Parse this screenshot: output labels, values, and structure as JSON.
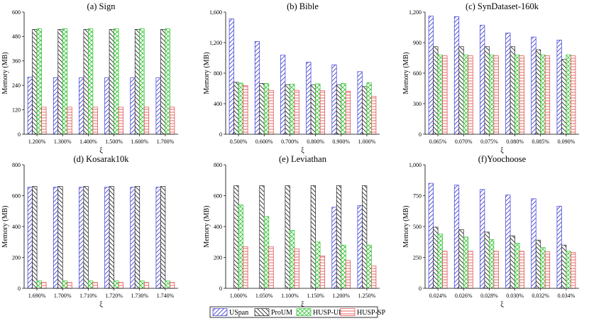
{
  "colors": {
    "USpan": "#3b3bd6",
    "ProUM": "#222222",
    "HUSP-ULL": "#2ec42e",
    "HUSP-SP": "#e04040"
  },
  "legend": [
    "USpan",
    "ProUM",
    "HUSP-ULL",
    "HUSP-SP"
  ],
  "chart_data": [
    {
      "type": "bar",
      "title": "(a) Sign",
      "xlabel": "ξ",
      "ylabel": "Memory (MB)",
      "ylim": [
        0,
        600
      ],
      "yticks": [
        "0",
        "120",
        "240",
        "360",
        "480",
        "600"
      ],
      "grid": false,
      "categories": [
        "1.200%",
        "1.300%",
        "1.400%",
        "1.500%",
        "1.600%",
        "1.700%"
      ],
      "series": [
        {
          "name": "USpan",
          "values": [
            280,
            277,
            277,
            277,
            277,
            277
          ]
        },
        {
          "name": "ProUM",
          "values": [
            515,
            515,
            515,
            515,
            515,
            515
          ]
        },
        {
          "name": "HUSP-ULL",
          "values": [
            518,
            518,
            518,
            518,
            518,
            518
          ]
        },
        {
          "name": "HUSP-SP",
          "values": [
            133,
            133,
            133,
            133,
            133,
            133
          ]
        }
      ]
    },
    {
      "type": "bar",
      "title": "(b) Bible",
      "xlabel": "ξ",
      "ylabel": "Memory (MB)",
      "ylim": [
        0,
        1600
      ],
      "yticks": [
        "0",
        "400",
        "800",
        "1,200",
        "1,600"
      ],
      "grid": false,
      "categories": [
        "0.500%",
        "0.600%",
        "0.700%",
        "0.800%",
        "0.900%",
        "1.000%"
      ],
      "series": [
        {
          "name": "USpan",
          "values": [
            1510,
            1215,
            1035,
            945,
            910,
            820
          ]
        },
        {
          "name": "ProUM",
          "values": [
            680,
            665,
            650,
            645,
            645,
            625
          ]
        },
        {
          "name": "HUSP-ULL",
          "values": [
            670,
            665,
            655,
            660,
            665,
            675
          ]
        },
        {
          "name": "HUSP-SP",
          "values": [
            635,
            575,
            575,
            570,
            565,
            495
          ]
        }
      ]
    },
    {
      "type": "bar",
      "title": "(c) SynDataset-160k",
      "xlabel": "ξ",
      "ylabel": "Memory (MB)",
      "ylim": [
        0,
        1200
      ],
      "yticks": [
        "0",
        "300",
        "600",
        "900",
        "1,200"
      ],
      "grid": false,
      "categories": [
        "0.065%",
        "0.070%",
        "0.075%",
        "0.080%",
        "0.085%",
        "0.090%"
      ],
      "series": [
        {
          "name": "USpan",
          "values": [
            1160,
            1155,
            1070,
            995,
            955,
            925
          ]
        },
        {
          "name": "ProUM",
          "values": [
            860,
            860,
            860,
            860,
            830,
            735
          ]
        },
        {
          "name": "HUSP-ULL",
          "values": [
            780,
            780,
            780,
            780,
            780,
            780
          ]
        },
        {
          "name": "HUSP-SP",
          "values": [
            770,
            770,
            770,
            770,
            770,
            770
          ]
        }
      ]
    },
    {
      "type": "bar",
      "title": "(d) Kosarak10k",
      "xlabel": "ξ",
      "ylabel": "Memory (MB)",
      "ylim": [
        0,
        800
      ],
      "yticks": [
        "0",
        "200",
        "400",
        "600",
        "800"
      ],
      "grid": false,
      "categories": [
        "1.690%",
        "1.700%",
        "1.710%",
        "1.720%",
        "1.730%",
        "1.740%"
      ],
      "series": [
        {
          "name": "USpan",
          "values": [
            655,
            655,
            655,
            655,
            655,
            655
          ]
        },
        {
          "name": "ProUM",
          "values": [
            660,
            660,
            660,
            660,
            660,
            660
          ]
        },
        {
          "name": "HUSP-ULL",
          "values": [
            48,
            48,
            48,
            48,
            48,
            48
          ]
        },
        {
          "name": "HUSP-SP",
          "values": [
            38,
            38,
            38,
            38,
            38,
            38
          ]
        }
      ]
    },
    {
      "type": "bar",
      "title": "(e) Leviathan",
      "xlabel": "ξ",
      "ylabel": "Memory (MB)",
      "ylim": [
        0,
        800
      ],
      "yticks": [
        "0",
        "200",
        "400",
        "600",
        "800"
      ],
      "grid": false,
      "categories": [
        "1.000%",
        "1.050%",
        "1.100%",
        "1.150%",
        "1.200%",
        "1.250%"
      ],
      "series": [
        {
          "name": "USpan",
          "values": [
            0,
            0,
            0,
            0,
            525,
            535
          ]
        },
        {
          "name": "ProUM",
          "values": [
            665,
            665,
            665,
            665,
            665,
            665
          ]
        },
        {
          "name": "HUSP-ULL",
          "values": [
            540,
            465,
            375,
            300,
            280,
            280
          ]
        },
        {
          "name": "HUSP-SP",
          "values": [
            270,
            270,
            255,
            210,
            180,
            145
          ]
        }
      ]
    },
    {
      "type": "bar",
      "title": "(f)Yoochoose",
      "xlabel": "ξ",
      "ylabel": "Memory (MB)",
      "ylim": [
        0,
        1000
      ],
      "yticks": [
        "0",
        "250",
        "500",
        "750",
        "1,000"
      ],
      "grid": false,
      "categories": [
        "0.024%",
        "0.026%",
        "0.028%",
        "0.030%",
        "0.032%",
        "0.034%"
      ],
      "series": [
        {
          "name": "USpan",
          "values": [
            850,
            835,
            800,
            755,
            725,
            665
          ]
        },
        {
          "name": "ProUM",
          "values": [
            495,
            475,
            455,
            425,
            390,
            350
          ]
        },
        {
          "name": "HUSP-ULL",
          "values": [
            440,
            415,
            395,
            365,
            330,
            300
          ]
        },
        {
          "name": "HUSP-SP",
          "values": [
            300,
            300,
            300,
            300,
            295,
            290
          ]
        }
      ]
    }
  ]
}
